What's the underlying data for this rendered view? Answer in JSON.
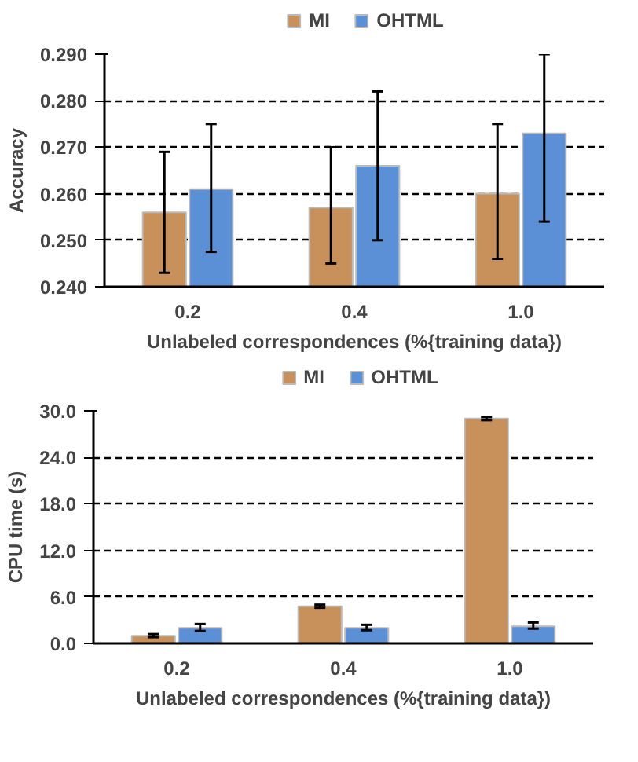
{
  "chart_data": [
    {
      "type": "bar",
      "categories": [
        "0.2",
        "0.4",
        "1.0"
      ],
      "xlabel": "Unlabeled correspondences (%{training data})",
      "ylabel": "Accuracy",
      "series": [
        {
          "name": "MI",
          "color": "#c8905a",
          "values": [
            0.256,
            0.257,
            0.26
          ],
          "errors": [
            [
              0.243,
              0.269
            ],
            [
              0.245,
              0.27
            ],
            [
              0.246,
              0.275
            ]
          ]
        },
        {
          "name": "OHTML",
          "color": "#5b8fd6",
          "values": [
            0.261,
            0.266,
            0.273
          ],
          "errors": [
            [
              0.2475,
              0.275
            ],
            [
              0.25,
              0.282
            ],
            [
              0.254,
              0.29
            ]
          ]
        }
      ],
      "ylim": [
        0.24,
        0.29
      ],
      "yticks": [
        {
          "value": 0.24,
          "label": "0.240"
        },
        {
          "value": 0.25,
          "label": "0.250"
        },
        {
          "value": 0.26,
          "label": "0.260"
        },
        {
          "value": 0.27,
          "label": "0.270"
        },
        {
          "value": 0.28,
          "label": "0.280"
        },
        {
          "value": 0.29,
          "label": "0.290"
        }
      ],
      "grid": "y",
      "legend": "top"
    },
    {
      "type": "bar",
      "categories": [
        "0.2",
        "0.4",
        "1.0"
      ],
      "xlabel": "Unlabeled correspondences (%{training data})",
      "ylabel": "CPU time (s)",
      "series": [
        {
          "name": "MI",
          "color": "#c8905a",
          "values": [
            1.0,
            4.8,
            29.0
          ],
          "errors": [
            0.2,
            0.2,
            0.2
          ]
        },
        {
          "name": "OHTML",
          "color": "#5b8fd6",
          "values": [
            2.0,
            2.0,
            2.2
          ],
          "errors": [
            [
              1.6,
              2.5
            ],
            [
              1.7,
              2.4
            ],
            [
              1.9,
              2.7
            ]
          ]
        }
      ],
      "ylim": [
        0,
        30
      ],
      "yticks": [
        {
          "value": 0,
          "label": "0.0"
        },
        {
          "value": 6,
          "label": "6.0"
        },
        {
          "value": 12,
          "label": "12.0"
        },
        {
          "value": 18,
          "label": "18.0"
        },
        {
          "value": 24,
          "label": "24.0"
        },
        {
          "value": 30,
          "label": "30.0"
        }
      ],
      "grid": "y",
      "legend": "top"
    }
  ]
}
